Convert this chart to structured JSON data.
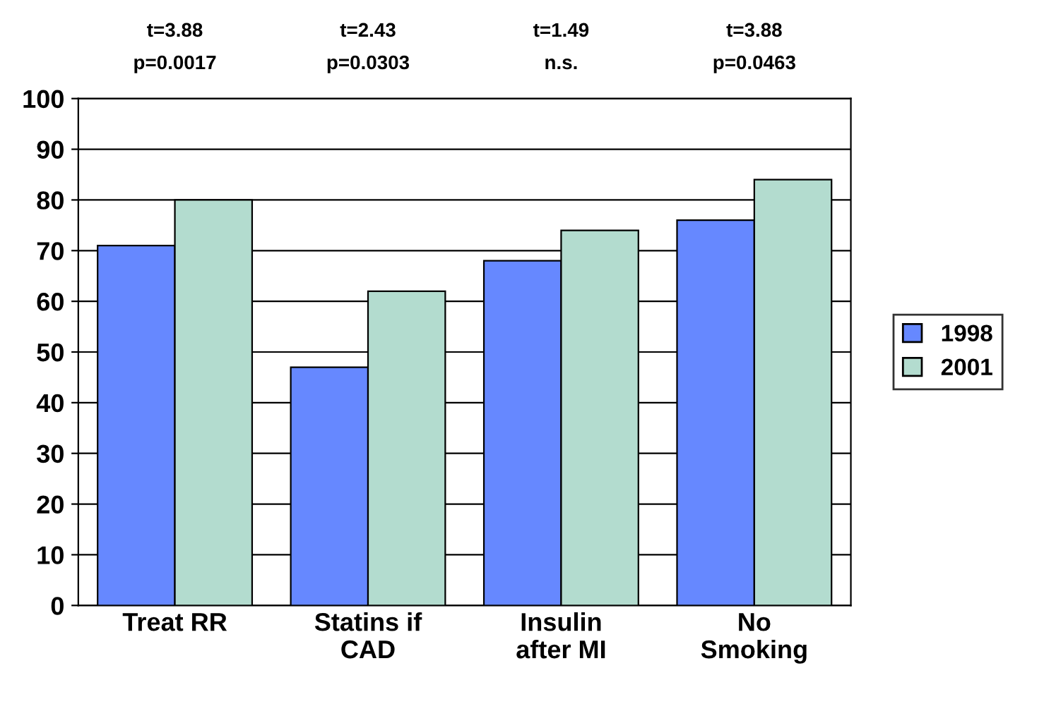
{
  "chart_data": {
    "type": "bar",
    "categories": [
      "Treat RR",
      "Statins if\nCAD",
      "Insulin\nafter MI",
      "No\nSmoking"
    ],
    "series": [
      {
        "name": "1998",
        "color": "#6688ff",
        "values": [
          71,
          47,
          68,
          76
        ]
      },
      {
        "name": "2001",
        "color": "#b3dccf",
        "values": [
          80,
          62,
          74,
          84
        ]
      }
    ],
    "ylim": [
      0,
      100
    ],
    "yticks": [
      0,
      10,
      20,
      30,
      40,
      50,
      60,
      70,
      80,
      90,
      100
    ],
    "grid": "y",
    "legend": "right",
    "annotations": [
      "t=3.88\np=0.0017",
      "t=2.43\np=0.0303",
      "t=1.49\nn.s.",
      "t=3.88\np=0.0463"
    ]
  }
}
